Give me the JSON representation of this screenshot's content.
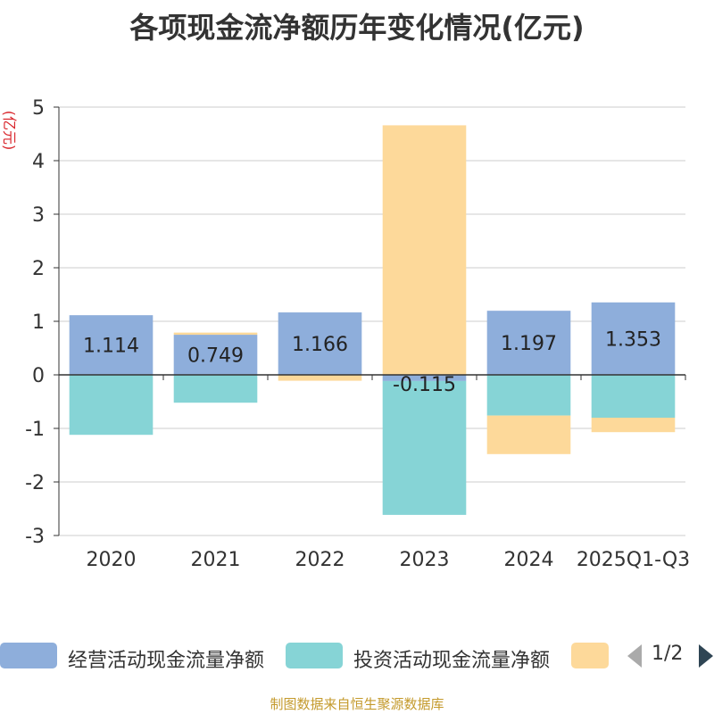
{
  "title": "各项现金流净额历年变化情况(亿元)",
  "footer": "制图数据来自恒生聚源数据库",
  "pager": {
    "text": "1/2"
  },
  "colors": {
    "operating": "#8eaedb",
    "investing": "#86d4d6",
    "financing": "#fdd99a"
  },
  "chart_data": {
    "type": "bar",
    "stacked": true,
    "title": "各项现金流净额历年变化情况(亿元)",
    "ylabel": "(亿元)",
    "xlabel": "",
    "ylim": [
      -3,
      5
    ],
    "yticks": [
      -3,
      -2,
      -1,
      0,
      1,
      2,
      3,
      4,
      5
    ],
    "grid": true,
    "categories": [
      "2020",
      "2021",
      "2022",
      "2023",
      "2024",
      "2025Q1-Q3"
    ],
    "series": [
      {
        "name": "经营活动现金流量净额",
        "values": [
          1.114,
          0.749,
          1.166,
          -0.115,
          1.197,
          1.353
        ],
        "labels": [
          "1.114",
          "0.749",
          "1.166",
          "-0.115",
          "1.197",
          "1.353"
        ]
      },
      {
        "name": "投资活动现金流量净额",
        "values": [
          -1.12,
          -0.52,
          0.0,
          -2.5,
          -0.76,
          -0.8
        ]
      },
      {
        "name": "",
        "values": [
          0.0,
          0.04,
          -0.11,
          4.66,
          -0.72,
          -0.27
        ]
      }
    ],
    "legend_position": "bottom"
  }
}
